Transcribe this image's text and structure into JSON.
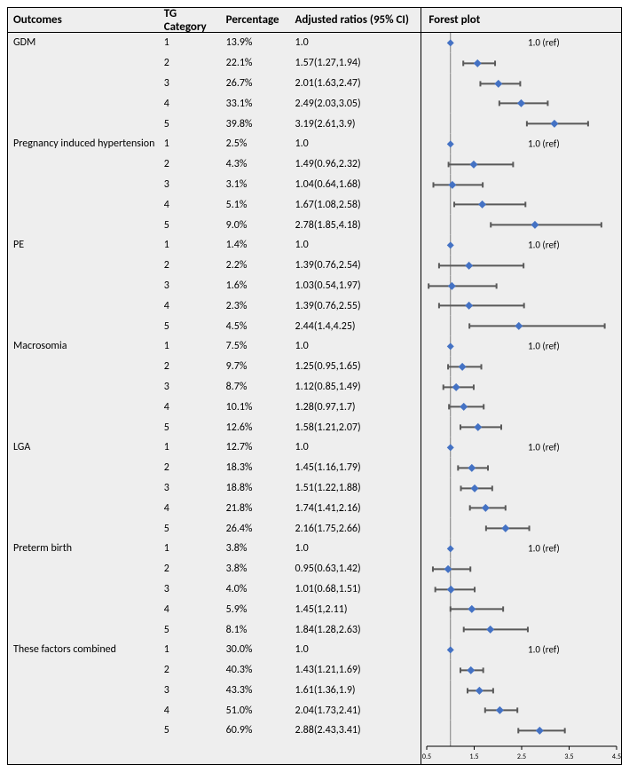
{
  "headers": {
    "outcomes": "Outcomes",
    "tg": "TG Category",
    "pct": "Percentage",
    "ratio": "Adjusted ratios (95% CI)",
    "forest": "Forest plot"
  },
  "forest": {
    "xmin": 0.5,
    "xmax": 4.5,
    "ticks": [
      0.5,
      1.5,
      2.5,
      3.5,
      4.5
    ],
    "tick_labels": [
      "0.5",
      "1.5",
      "2.5",
      "3.5",
      "4.5"
    ],
    "ref_x": 1.0,
    "ref_label": "1.0 (ref)",
    "marker_color": "#4472c4",
    "ci_color": "#595959",
    "tick_fontsize": 8
  },
  "groups": [
    {
      "name": "GDM",
      "rows": [
        {
          "tg": "1",
          "pct": "13.9%",
          "ratio": "1.0",
          "pe": 1.0,
          "lo": null,
          "hi": null,
          "ref": true
        },
        {
          "tg": "2",
          "pct": "22.1%",
          "ratio": "1.57(1.27,1.94)",
          "pe": 1.57,
          "lo": 1.27,
          "hi": 1.94
        },
        {
          "tg": "3",
          "pct": "26.7%",
          "ratio": "2.01(1.63,2.47)",
          "pe": 2.01,
          "lo": 1.63,
          "hi": 2.47
        },
        {
          "tg": "4",
          "pct": "33.1%",
          "ratio": "2.49(2.03,3.05)",
          "pe": 2.49,
          "lo": 2.03,
          "hi": 3.05
        },
        {
          "tg": "5",
          "pct": "39.8%",
          "ratio": "3.19(2.61,3.9)",
          "pe": 3.19,
          "lo": 2.61,
          "hi": 3.9
        }
      ]
    },
    {
      "name": "Pregnancy induced hypertension",
      "rows": [
        {
          "tg": "1",
          "pct": "2.5%",
          "ratio": "1.0",
          "pe": 1.0,
          "lo": null,
          "hi": null,
          "ref": true
        },
        {
          "tg": "2",
          "pct": "4.3%",
          "ratio": "1.49(0.96,2.32)",
          "pe": 1.49,
          "lo": 0.96,
          "hi": 2.32
        },
        {
          "tg": "3",
          "pct": "3.1%",
          "ratio": "1.04(0.64,1.68)",
          "pe": 1.04,
          "lo": 0.64,
          "hi": 1.68
        },
        {
          "tg": "4",
          "pct": "5.1%",
          "ratio": "1.67(1.08,2.58)",
          "pe": 1.67,
          "lo": 1.08,
          "hi": 2.58
        },
        {
          "tg": "5",
          "pct": "9.0%",
          "ratio": "2.78(1.85,4.18)",
          "pe": 2.78,
          "lo": 1.85,
          "hi": 4.18
        }
      ]
    },
    {
      "name": "PE",
      "rows": [
        {
          "tg": "1",
          "pct": "1.4%",
          "ratio": "1.0",
          "pe": 1.0,
          "lo": null,
          "hi": null,
          "ref": true
        },
        {
          "tg": "2",
          "pct": "2.2%",
          "ratio": "1.39(0.76,2.54)",
          "pe": 1.39,
          "lo": 0.76,
          "hi": 2.54
        },
        {
          "tg": "3",
          "pct": "1.6%",
          "ratio": "1.03(0.54,1.97)",
          "pe": 1.03,
          "lo": 0.54,
          "hi": 1.97
        },
        {
          "tg": "4",
          "pct": "2.3%",
          "ratio": "1.39(0.76,2.55)",
          "pe": 1.39,
          "lo": 0.76,
          "hi": 2.55
        },
        {
          "tg": "5",
          "pct": "4.5%",
          "ratio": "2.44(1.4,4.25)",
          "pe": 2.44,
          "lo": 1.4,
          "hi": 4.25
        }
      ]
    },
    {
      "name": "Macrosomia",
      "rows": [
        {
          "tg": "1",
          "pct": "7.5%",
          "ratio": "1.0",
          "pe": 1.0,
          "lo": null,
          "hi": null,
          "ref": true
        },
        {
          "tg": "2",
          "pct": "9.7%",
          "ratio": "1.25(0.95,1.65)",
          "pe": 1.25,
          "lo": 0.95,
          "hi": 1.65
        },
        {
          "tg": "3",
          "pct": "8.7%",
          "ratio": "1.12(0.85,1.49)",
          "pe": 1.12,
          "lo": 0.85,
          "hi": 1.49
        },
        {
          "tg": "4",
          "pct": "10.1%",
          "ratio": "1.28(0.97,1.7)",
          "pe": 1.28,
          "lo": 0.97,
          "hi": 1.7
        },
        {
          "tg": "5",
          "pct": "12.6%",
          "ratio": "1.58(1.21,2.07)",
          "pe": 1.58,
          "lo": 1.21,
          "hi": 2.07
        }
      ]
    },
    {
      "name": "LGA",
      "rows": [
        {
          "tg": "1",
          "pct": "12.7%",
          "ratio": "1.0",
          "pe": 1.0,
          "lo": null,
          "hi": null,
          "ref": true
        },
        {
          "tg": "2",
          "pct": "18.3%",
          "ratio": "1.45(1.16,1.79)",
          "pe": 1.45,
          "lo": 1.16,
          "hi": 1.79
        },
        {
          "tg": "3",
          "pct": "18.8%",
          "ratio": "1.51(1.22,1.88)",
          "pe": 1.51,
          "lo": 1.22,
          "hi": 1.88
        },
        {
          "tg": "4",
          "pct": "21.8%",
          "ratio": "1.74(1.41,2.16)",
          "pe": 1.74,
          "lo": 1.41,
          "hi": 2.16
        },
        {
          "tg": "5",
          "pct": "26.4%",
          "ratio": "2.16(1.75,2.66)",
          "pe": 2.16,
          "lo": 1.75,
          "hi": 2.66
        }
      ]
    },
    {
      "name": "Preterm birth",
      "rows": [
        {
          "tg": "1",
          "pct": "3.8%",
          "ratio": "1.0",
          "pe": 1.0,
          "lo": null,
          "hi": null,
          "ref": true
        },
        {
          "tg": "2",
          "pct": "3.8%",
          "ratio": "0.95(0.63,1.42)",
          "pe": 0.95,
          "lo": 0.63,
          "hi": 1.42
        },
        {
          "tg": "3",
          "pct": "4.0%",
          "ratio": "1.01(0.68,1.51)",
          "pe": 1.01,
          "lo": 0.68,
          "hi": 1.51
        },
        {
          "tg": "4",
          "pct": "5.9%",
          "ratio": "1.45(1,2.11)",
          "pe": 1.45,
          "lo": 1.0,
          "hi": 2.11
        },
        {
          "tg": "5",
          "pct": "8.1%",
          "ratio": "1.84(1.28,2.63)",
          "pe": 1.84,
          "lo": 1.28,
          "hi": 2.63
        }
      ]
    },
    {
      "name": "These factors combined",
      "rows": [
        {
          "tg": "1",
          "pct": "30.0%",
          "ratio": "1.0",
          "pe": 1.0,
          "lo": null,
          "hi": null,
          "ref": true
        },
        {
          "tg": "2",
          "pct": "40.3%",
          "ratio": "1.43(1.21,1.69)",
          "pe": 1.43,
          "lo": 1.21,
          "hi": 1.69
        },
        {
          "tg": "3",
          "pct": "43.3%",
          "ratio": "1.61(1.36,1.9)",
          "pe": 1.61,
          "lo": 1.36,
          "hi": 1.9
        },
        {
          "tg": "4",
          "pct": "51.0%",
          "ratio": "2.04(1.73,2.41)",
          "pe": 2.04,
          "lo": 1.73,
          "hi": 2.41
        },
        {
          "tg": "5",
          "pct": "60.9%",
          "ratio": "2.88(2.43,3.41)",
          "pe": 2.88,
          "lo": 2.43,
          "hi": 3.41
        }
      ]
    }
  ]
}
